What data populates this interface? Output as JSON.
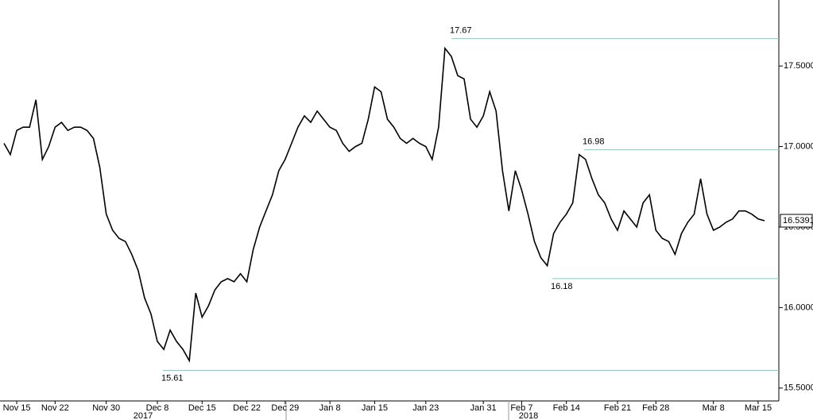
{
  "chart_data": {
    "type": "line",
    "categories": [
      null,
      null,
      "Nov 15",
      null,
      null,
      null,
      null,
      null,
      "Nov 22",
      null,
      null,
      null,
      null,
      null,
      null,
      null,
      "Nov 30",
      null,
      null,
      null,
      null,
      null,
      null,
      null,
      "Dec 8",
      null,
      null,
      null,
      null,
      null,
      null,
      "Dec 15",
      null,
      null,
      null,
      null,
      null,
      null,
      "Dec 22",
      null,
      null,
      null,
      null,
      null,
      "Dec 29",
      null,
      null,
      null,
      null,
      null,
      null,
      "Jan 8",
      null,
      null,
      null,
      null,
      null,
      null,
      "Jan 15",
      null,
      null,
      null,
      null,
      null,
      null,
      null,
      "Jan 23",
      null,
      null,
      null,
      null,
      null,
      null,
      null,
      null,
      "Jan 31",
      null,
      null,
      null,
      null,
      null,
      "Feb 7",
      null,
      null,
      null,
      null,
      null,
      null,
      "Feb 14",
      null,
      null,
      null,
      null,
      null,
      null,
      null,
      "Feb 21",
      null,
      null,
      null,
      null,
      null,
      "Feb 28",
      null,
      null,
      null,
      null,
      null,
      null,
      null,
      null,
      "Mar 8",
      null,
      null,
      null,
      null,
      null,
      null,
      "Mar 15",
      null
    ],
    "values": [
      17.02,
      16.95,
      17.1,
      17.12,
      17.12,
      17.29,
      16.92,
      17.0,
      17.12,
      17.15,
      17.1,
      17.12,
      17.12,
      17.1,
      17.05,
      16.87,
      16.58,
      16.48,
      16.43,
      16.41,
      16.33,
      16.23,
      16.06,
      15.96,
      15.79,
      15.74,
      15.86,
      15.79,
      15.74,
      15.67,
      16.09,
      15.94,
      16.01,
      16.11,
      16.16,
      16.18,
      16.16,
      16.21,
      16.16,
      16.36,
      16.5,
      16.6,
      16.7,
      16.85,
      16.92,
      17.02,
      17.12,
      17.19,
      17.15,
      17.22,
      17.17,
      17.12,
      17.1,
      17.02,
      16.97,
      17.0,
      17.02,
      17.17,
      17.37,
      17.34,
      17.17,
      17.12,
      17.05,
      17.02,
      17.05,
      17.02,
      17.0,
      16.92,
      17.12,
      17.61,
      17.56,
      17.44,
      17.42,
      17.17,
      17.12,
      17.19,
      17.34,
      17.22,
      16.85,
      16.6,
      16.85,
      16.73,
      16.58,
      16.41,
      16.31,
      16.26,
      16.46,
      16.53,
      16.58,
      16.65,
      16.95,
      16.92,
      16.8,
      16.7,
      16.65,
      16.55,
      16.48,
      16.6,
      16.55,
      16.5,
      16.65,
      16.7,
      16.48,
      16.43,
      16.41,
      16.33,
      16.46,
      16.53,
      16.58,
      16.8,
      16.58,
      16.48,
      16.5,
      16.53,
      16.55,
      16.6,
      16.6,
      16.58,
      16.55,
      16.5391
    ],
    "color": "#000000",
    "ylim": [
      15.42,
      17.91
    ],
    "yticks": [
      {
        "value": 15.5,
        "label": "15.5000"
      },
      {
        "value": 16,
        "label": "16.0000"
      },
      {
        "value": 16.5,
        "label": "16.5000"
      },
      {
        "value": 17,
        "label": "17.0000"
      },
      {
        "value": 17.5,
        "label": "17.5000"
      }
    ],
    "reference_lines": [
      17.67,
      16.98,
      16.18,
      15.61
    ],
    "reference_color": "#7fcfc0",
    "years": [
      "2017",
      "2018"
    ]
  }
}
